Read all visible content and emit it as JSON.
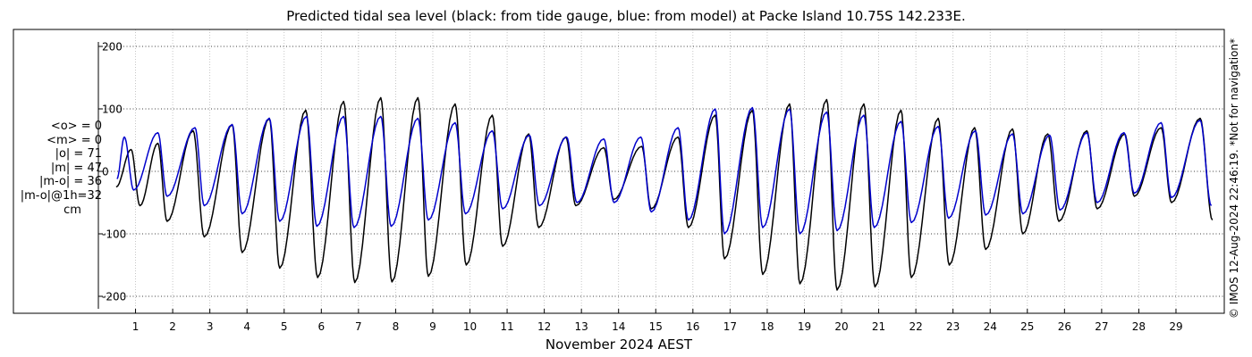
{
  "title": "Predicted tidal sea level (black: from tide gauge, blue: from model) at Packe Island 10.75S 142.233E.",
  "side_note": "© IMOS 12-Aug-2024 22:46:19. *Not for navigation*",
  "stats": {
    "mean_obs": "<o> = 0",
    "mean_model": "<m> = 0",
    "abs_obs": "|o| = 71",
    "abs_model": "|m| = 47",
    "abs_diff": "|m-o| = 36",
    "abs_diff_1h": "|m-o|@1h=32",
    "unit": "cm"
  },
  "colors": {
    "observed": "#000000",
    "model": "#0000cc",
    "grid": "#b0b0b0"
  },
  "chart_data": {
    "type": "line",
    "title": "Predicted tidal sea level (black: from tide gauge, blue: from model) at Packe Island 10.75S 142.233E.",
    "xlabel": "November 2024 AEST",
    "ylabel": "",
    "xlim": [
      0,
      30.3
    ],
    "ylim": [
      -210,
      210
    ],
    "x_ticks": [
      1,
      2,
      3,
      4,
      5,
      6,
      7,
      8,
      9,
      10,
      11,
      12,
      13,
      14,
      15,
      16,
      17,
      18,
      19,
      20,
      21,
      22,
      23,
      24,
      25,
      26,
      27,
      28,
      29
    ],
    "x_tick_labels": [
      "1",
      "2",
      "3",
      "4",
      "5",
      "6",
      "7",
      "8",
      "9",
      "10",
      "11",
      "12",
      "13",
      "14",
      "15",
      "16",
      "17",
      "18",
      "19",
      "20",
      "21",
      "22",
      "23",
      "24",
      "25",
      "26",
      "27",
      "28",
      "29"
    ],
    "y_ticks": [
      -200,
      -100,
      0,
      100,
      200
    ],
    "y_tick_labels": [
      "-200",
      "-100",
      "0",
      "100",
      "200"
    ],
    "grid": true,
    "series": [
      {
        "name": "tide gauge",
        "color": "#000000",
        "extrema": [
          {
            "day": 0.48,
            "value": -25
          },
          {
            "day": 0.88,
            "value": 35
          },
          {
            "day": 1.12,
            "value": -55
          },
          {
            "day": 1.6,
            "value": 45
          },
          {
            "day": 1.85,
            "value": -80
          },
          {
            "day": 2.55,
            "value": 65
          },
          {
            "day": 2.85,
            "value": -105
          },
          {
            "day": 3.6,
            "value": 75
          },
          {
            "day": 3.87,
            "value": -130
          },
          {
            "day": 4.6,
            "value": 85
          },
          {
            "day": 4.88,
            "value": -155
          },
          {
            "day": 5.58,
            "value": 98
          },
          {
            "day": 5.9,
            "value": -170
          },
          {
            "day": 6.6,
            "value": 112
          },
          {
            "day": 6.9,
            "value": -178
          },
          {
            "day": 7.6,
            "value": 118
          },
          {
            "day": 7.9,
            "value": -177
          },
          {
            "day": 8.6,
            "value": 118
          },
          {
            "day": 8.88,
            "value": -168
          },
          {
            "day": 9.6,
            "value": 108
          },
          {
            "day": 9.9,
            "value": -150
          },
          {
            "day": 10.6,
            "value": 90
          },
          {
            "day": 10.88,
            "value": -120
          },
          {
            "day": 11.58,
            "value": 60
          },
          {
            "day": 11.85,
            "value": -90
          },
          {
            "day": 12.58,
            "value": 55
          },
          {
            "day": 12.85,
            "value": -55
          },
          {
            "day": 13.6,
            "value": 38
          },
          {
            "day": 13.87,
            "value": -45
          },
          {
            "day": 14.62,
            "value": 40
          },
          {
            "day": 14.88,
            "value": -60
          },
          {
            "day": 15.6,
            "value": 55
          },
          {
            "day": 15.88,
            "value": -90
          },
          {
            "day": 16.6,
            "value": 90
          },
          {
            "day": 16.85,
            "value": -140
          },
          {
            "day": 17.6,
            "value": 98
          },
          {
            "day": 17.88,
            "value": -165
          },
          {
            "day": 18.6,
            "value": 108
          },
          {
            "day": 18.88,
            "value": -180
          },
          {
            "day": 19.6,
            "value": 115
          },
          {
            "day": 19.88,
            "value": -190
          },
          {
            "day": 20.6,
            "value": 108
          },
          {
            "day": 20.9,
            "value": -185
          },
          {
            "day": 21.6,
            "value": 98
          },
          {
            "day": 21.88,
            "value": -170
          },
          {
            "day": 22.6,
            "value": 85
          },
          {
            "day": 22.9,
            "value": -150
          },
          {
            "day": 23.58,
            "value": 70
          },
          {
            "day": 23.88,
            "value": -125
          },
          {
            "day": 24.6,
            "value": 68
          },
          {
            "day": 24.88,
            "value": -100
          },
          {
            "day": 25.55,
            "value": 60
          },
          {
            "day": 25.85,
            "value": -80
          },
          {
            "day": 26.6,
            "value": 65
          },
          {
            "day": 26.88,
            "value": -60
          },
          {
            "day": 27.62,
            "value": 60
          },
          {
            "day": 27.88,
            "value": -40
          },
          {
            "day": 28.6,
            "value": 70
          },
          {
            "day": 28.88,
            "value": -50
          },
          {
            "day": 29.65,
            "value": 85
          },
          {
            "day": 29.98,
            "value": -78
          }
        ]
      },
      {
        "name": "model",
        "color": "#0000cc",
        "extrema": [
          {
            "day": 0.5,
            "value": -12
          },
          {
            "day": 0.7,
            "value": 55
          },
          {
            "day": 0.95,
            "value": -30
          },
          {
            "day": 1.6,
            "value": 62
          },
          {
            "day": 1.85,
            "value": -40
          },
          {
            "day": 2.6,
            "value": 70
          },
          {
            "day": 2.85,
            "value": -55
          },
          {
            "day": 3.6,
            "value": 75
          },
          {
            "day": 3.87,
            "value": -68
          },
          {
            "day": 4.6,
            "value": 85
          },
          {
            "day": 4.88,
            "value": -80
          },
          {
            "day": 5.6,
            "value": 88
          },
          {
            "day": 5.88,
            "value": -88
          },
          {
            "day": 6.6,
            "value": 88
          },
          {
            "day": 6.88,
            "value": -90
          },
          {
            "day": 7.6,
            "value": 88
          },
          {
            "day": 7.88,
            "value": -88
          },
          {
            "day": 8.6,
            "value": 85
          },
          {
            "day": 8.88,
            "value": -78
          },
          {
            "day": 9.6,
            "value": 78
          },
          {
            "day": 9.88,
            "value": -68
          },
          {
            "day": 10.6,
            "value": 65
          },
          {
            "day": 10.88,
            "value": -60
          },
          {
            "day": 11.6,
            "value": 58
          },
          {
            "day": 11.87,
            "value": -55
          },
          {
            "day": 12.6,
            "value": 55
          },
          {
            "day": 12.88,
            "value": -50
          },
          {
            "day": 13.6,
            "value": 52
          },
          {
            "day": 13.88,
            "value": -50
          },
          {
            "day": 14.6,
            "value": 55
          },
          {
            "day": 14.88,
            "value": -65
          },
          {
            "day": 15.6,
            "value": 70
          },
          {
            "day": 15.88,
            "value": -78
          },
          {
            "day": 16.6,
            "value": 100
          },
          {
            "day": 16.85,
            "value": -100
          },
          {
            "day": 17.6,
            "value": 102
          },
          {
            "day": 17.88,
            "value": -90
          },
          {
            "day": 18.6,
            "value": 100
          },
          {
            "day": 18.88,
            "value": -100
          },
          {
            "day": 19.6,
            "value": 95
          },
          {
            "day": 19.88,
            "value": -95
          },
          {
            "day": 20.6,
            "value": 90
          },
          {
            "day": 20.88,
            "value": -90
          },
          {
            "day": 21.6,
            "value": 80
          },
          {
            "day": 21.88,
            "value": -82
          },
          {
            "day": 22.6,
            "value": 72
          },
          {
            "day": 22.88,
            "value": -75
          },
          {
            "day": 23.6,
            "value": 65
          },
          {
            "day": 23.88,
            "value": -70
          },
          {
            "day": 24.6,
            "value": 60
          },
          {
            "day": 24.88,
            "value": -68
          },
          {
            "day": 25.6,
            "value": 58
          },
          {
            "day": 25.88,
            "value": -62
          },
          {
            "day": 26.6,
            "value": 62
          },
          {
            "day": 26.88,
            "value": -50
          },
          {
            "day": 27.6,
            "value": 62
          },
          {
            "day": 27.88,
            "value": -35
          },
          {
            "day": 28.6,
            "value": 78
          },
          {
            "day": 28.88,
            "value": -42
          },
          {
            "day": 29.65,
            "value": 82
          },
          {
            "day": 29.95,
            "value": -55
          }
        ]
      }
    ]
  }
}
